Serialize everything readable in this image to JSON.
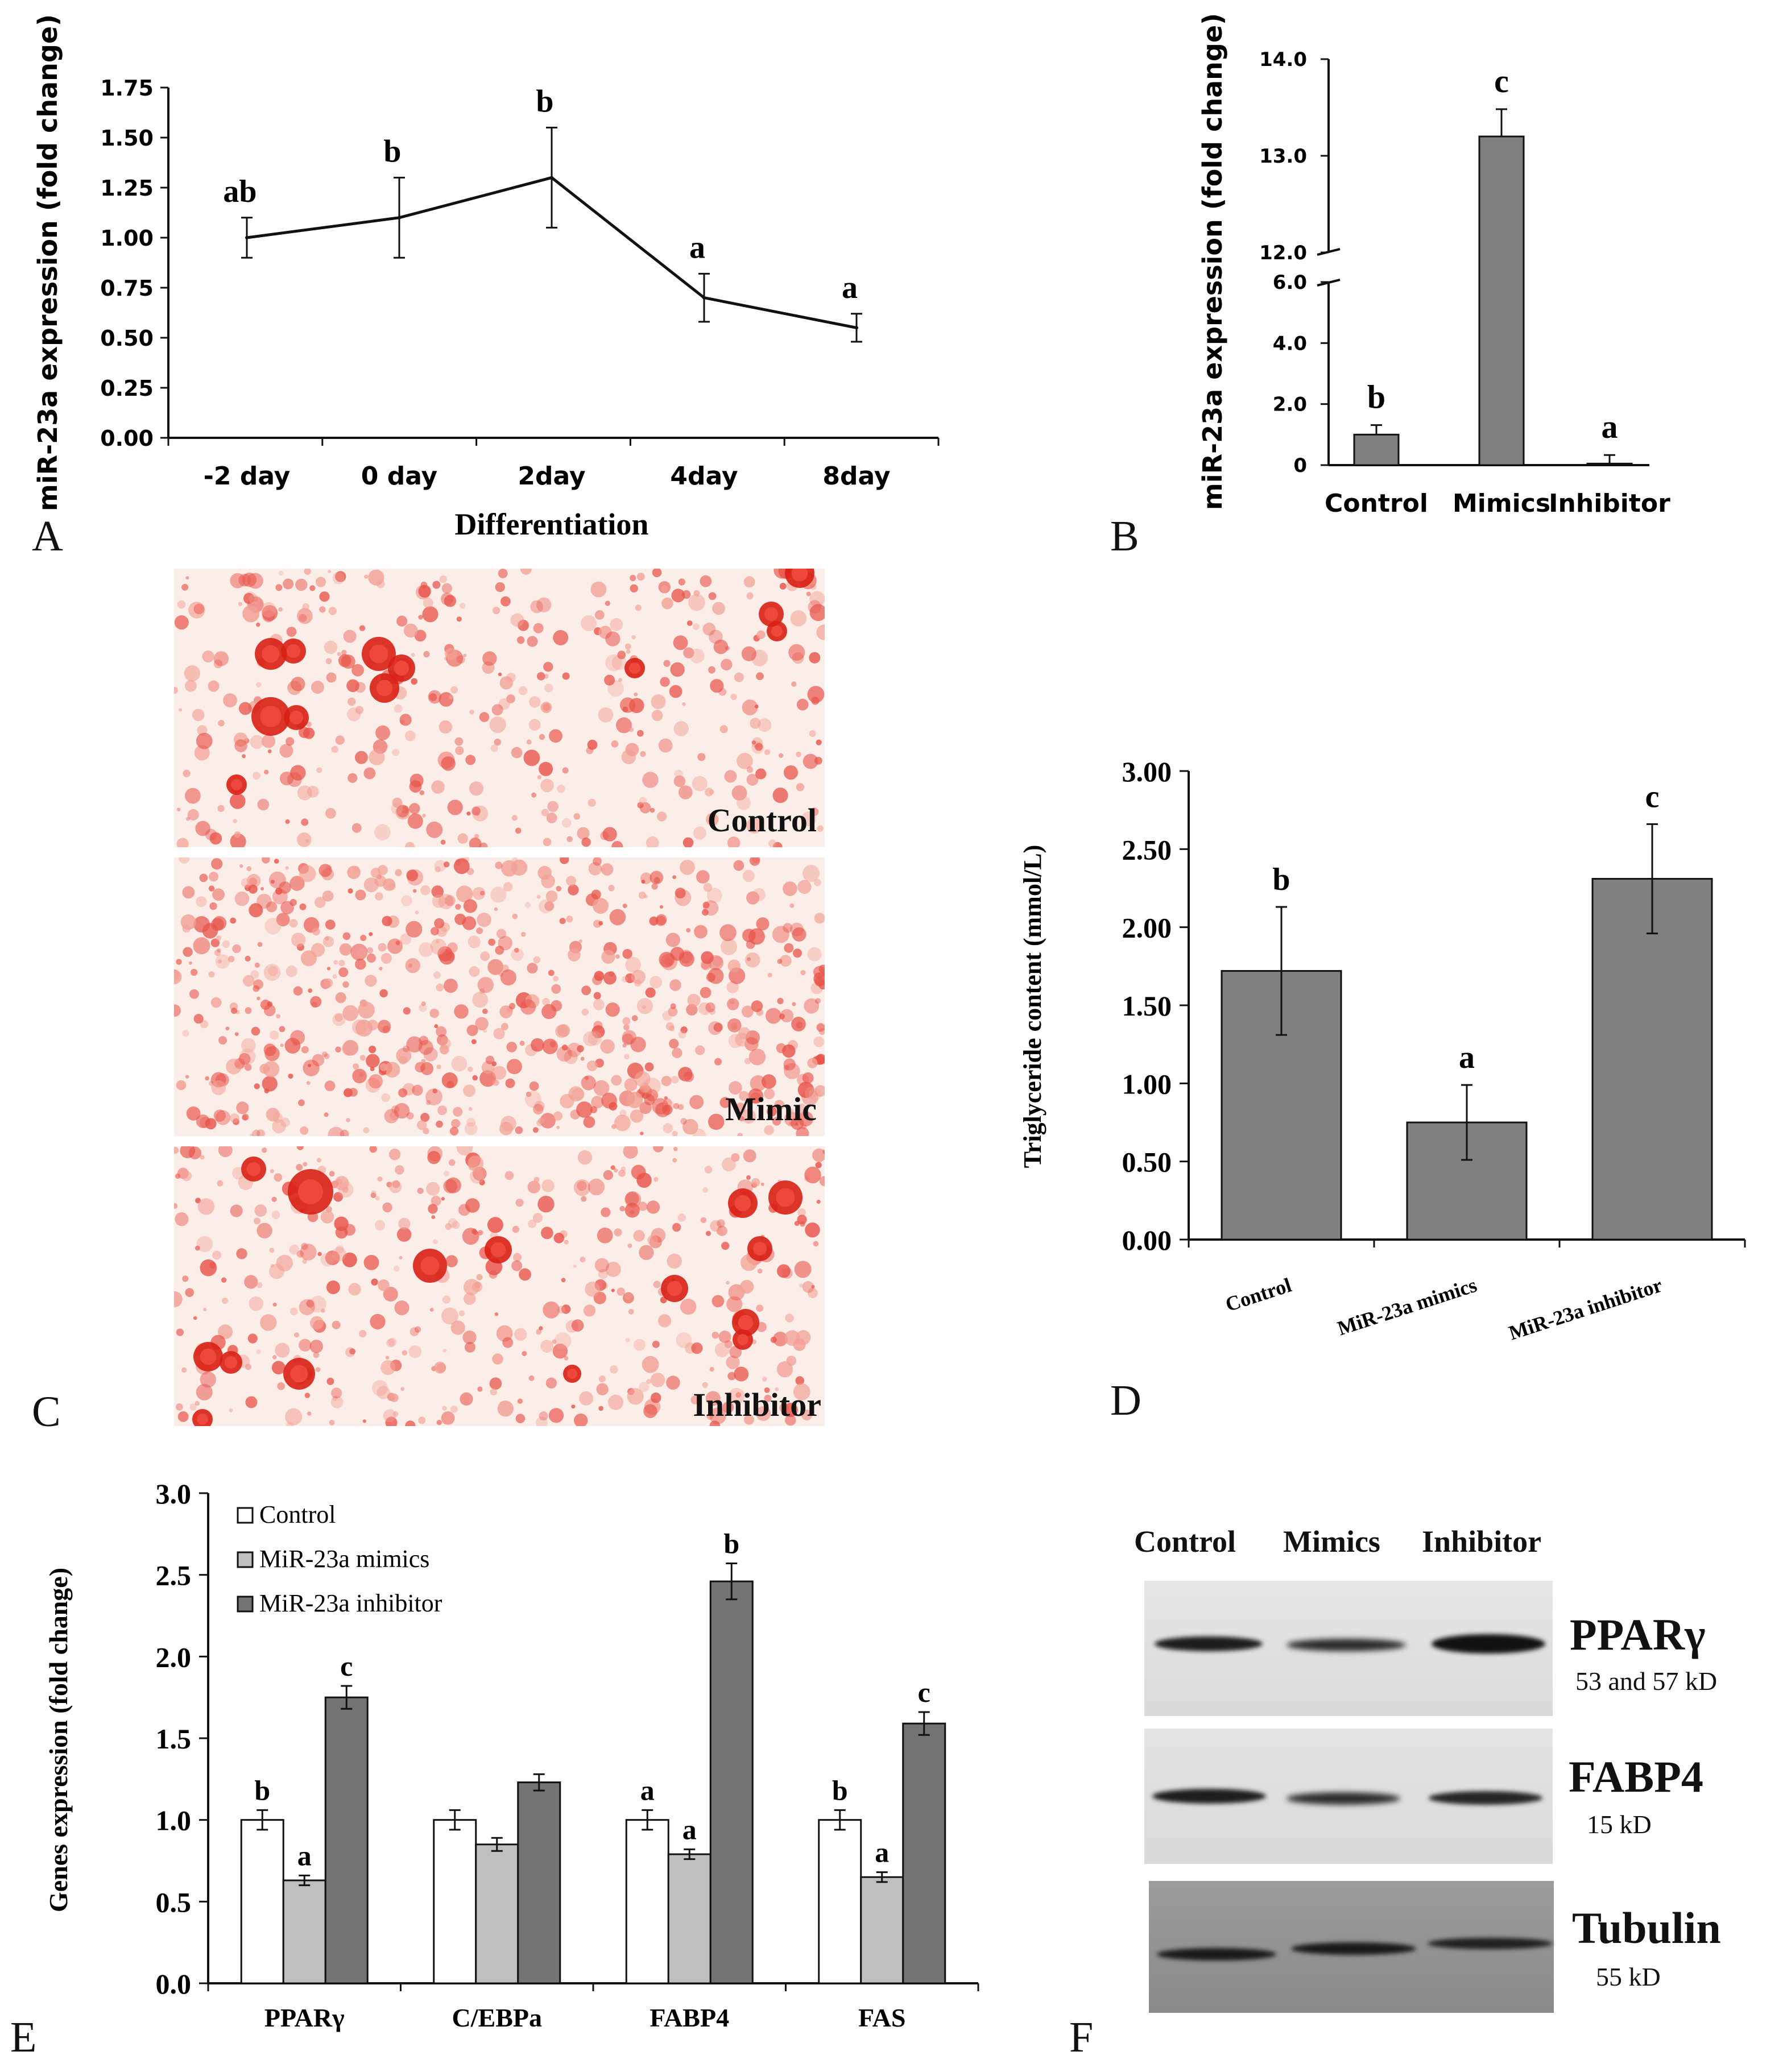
{
  "panel_labels": [
    "A",
    "B",
    "C",
    "D",
    "E",
    "F"
  ],
  "chart_data": [
    {
      "id": "A",
      "type": "line",
      "title": "",
      "xlabel": "Differentiation",
      "ylabel": "miR-23a expression (fold change)",
      "categories": [
        "-2 day",
        "0 day",
        "2day",
        "4day",
        "8day"
      ],
      "values": [
        1.0,
        1.1,
        1.3,
        0.7,
        0.55
      ],
      "errors": [
        0.1,
        0.2,
        0.25,
        0.12,
        0.07
      ],
      "letters": [
        "ab",
        "b",
        "b",
        "a",
        "a"
      ],
      "ylim": [
        0,
        1.75
      ],
      "yticks": [
        "0.00",
        "0.25",
        "0.50",
        "0.75",
        "1.00",
        "1.25",
        "1.50",
        "1.75"
      ]
    },
    {
      "id": "B",
      "type": "bar",
      "ylabel": "miR-23a expression (fold change)",
      "categories": [
        "Control",
        "Mimics",
        "Inhibitor"
      ],
      "values": [
        1.0,
        13.2,
        0.05
      ],
      "errors": [
        0.05,
        0.2,
        0.02
      ],
      "letters": [
        "b",
        "c",
        "a"
      ],
      "axis_break": [
        6.0,
        12.0
      ],
      "yticks_low": [
        "0",
        "2.0",
        "4.0",
        "6.0"
      ],
      "yticks_high": [
        "12.0",
        "13.0",
        "14.0"
      ],
      "colors": {
        "bar": "#7f7f7f"
      }
    },
    {
      "id": "D",
      "type": "bar",
      "ylabel": "Triglyceride content (mmol/L)",
      "categories": [
        "Control",
        "MiR-23a mimics",
        "MiR-23a inhibitor"
      ],
      "values": [
        1.72,
        0.75,
        2.31
      ],
      "errors": [
        0.41,
        0.24,
        0.35
      ],
      "letters": [
        "b",
        "a",
        "c"
      ],
      "ylim": [
        0,
        3.0
      ],
      "yticks": [
        "0.00",
        "0.50",
        "1.00",
        "1.50",
        "2.00",
        "2.50",
        "3.00"
      ],
      "colors": {
        "bar": "#808080"
      }
    },
    {
      "id": "E",
      "type": "bar",
      "ylabel": "Genes expression (fold change)",
      "categories": [
        "PPARγ",
        "C/EBPa",
        "FABP4",
        "FAS"
      ],
      "series": [
        {
          "name": "Control",
          "values": [
            1.0,
            1.0,
            1.0,
            1.0
          ],
          "errors": [
            0.06,
            0.06,
            0.06,
            0.06
          ],
          "letters": [
            "b",
            "",
            "a",
            "b"
          ]
        },
        {
          "name": "MiR-23a mimics",
          "values": [
            0.63,
            0.85,
            0.79,
            0.65
          ],
          "errors": [
            0.03,
            0.04,
            0.03,
            0.03
          ],
          "letters": [
            "a",
            "",
            "a",
            "a"
          ]
        },
        {
          "name": "MiR-23a inhibitor",
          "values": [
            1.75,
            1.23,
            2.46,
            1.59
          ],
          "errors": [
            0.07,
            0.05,
            0.11,
            0.07
          ],
          "letters": [
            "c",
            "",
            "b",
            "c"
          ]
        }
      ],
      "ylim": [
        0,
        3.0
      ],
      "yticks": [
        "0.0",
        "0.5",
        "1.0",
        "1.5",
        "2.0",
        "2.5",
        "3.0"
      ],
      "colors": {
        "series": [
          "#ffffff",
          "#bfbfbf",
          "#737373"
        ]
      }
    }
  ],
  "panel_c": {
    "images": [
      {
        "label": "Control"
      },
      {
        "label": "Mimic"
      },
      {
        "label": "Inhibitor"
      }
    ]
  },
  "panel_f": {
    "lane_headers": [
      "Control",
      "Mimics",
      "Inhibitor"
    ],
    "blots": [
      {
        "protein": "PPARγ",
        "size": "53 and 57 kD"
      },
      {
        "protein": "FABP4",
        "size": "15 kD"
      },
      {
        "protein": "Tubulin",
        "size": "55 kD"
      }
    ]
  }
}
